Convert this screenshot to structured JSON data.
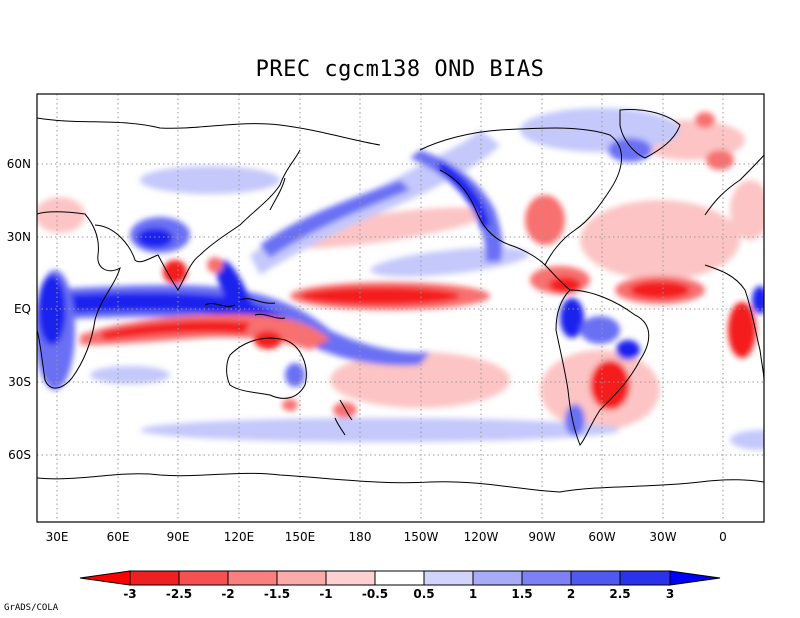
{
  "title": "PREC cgcm138 OND  BIAS",
  "credit": "GrADS/COLA",
  "map": {
    "lat_labels": [
      "60N",
      "30N",
      "EQ",
      "30S",
      "60S"
    ],
    "lon_labels": [
      "30E",
      "60E",
      "90E",
      "120E",
      "150E",
      "180",
      "150W",
      "120W",
      "90W",
      "60W",
      "30W",
      "0"
    ]
  },
  "colorbar": {
    "labels": [
      "-3",
      "-2.5",
      "-2",
      "-1.5",
      "-1",
      "-0.5",
      "0.5",
      "1",
      "1.5",
      "2",
      "2.5",
      "3"
    ],
    "colors": [
      "#f02020",
      "#f75050",
      "#fa8080",
      "#fcabab",
      "#fdd1d1",
      "#ffffff",
      "#d2d4fb",
      "#a8acf8",
      "#7c82f5",
      "#5058f2",
      "#2a32ee"
    ],
    "end_low": "#ff0000",
    "end_high": "#0000ff"
  },
  "colors": {
    "red_strong": "#f41c1c",
    "red_mid": "#f86f6f",
    "red_light": "#fcc4c4",
    "blue_strong": "#1a24ee",
    "blue_mid": "#6a70f4",
    "blue_light": "#c4c8fa"
  }
}
